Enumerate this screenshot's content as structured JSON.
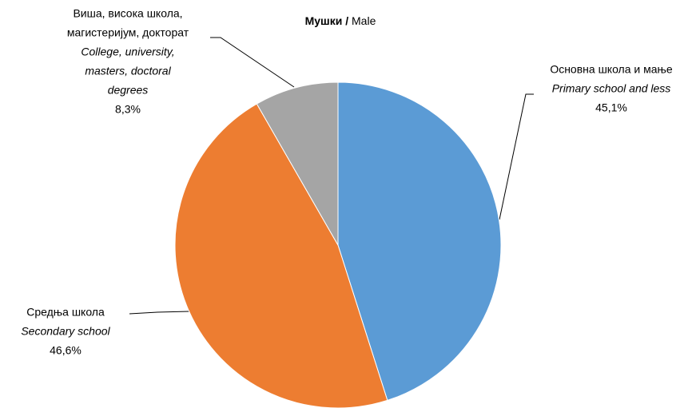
{
  "chart_data": {
    "type": "pie",
    "title": [
      "Мушки /",
      "Male"
    ],
    "categories": [
      [
        "Основна школа и мање"
      ],
      [
        "Средња школа"
      ],
      [
        "Виша, висока школа,",
        "магистеријум, докторат"
      ]
    ],
    "categories_en": [
      [
        "Primary school and less"
      ],
      [
        "Secondary school"
      ],
      [
        "College, university,",
        "masters, doctoral",
        "degrees"
      ]
    ],
    "values": [
      45.1,
      46.6,
      8.3
    ],
    "value_labels": [
      "45,1%",
      "46,6%",
      "8,3%"
    ],
    "colors": [
      "#5b9bd5",
      "#ed7d31",
      "#a5a5a5"
    ]
  }
}
